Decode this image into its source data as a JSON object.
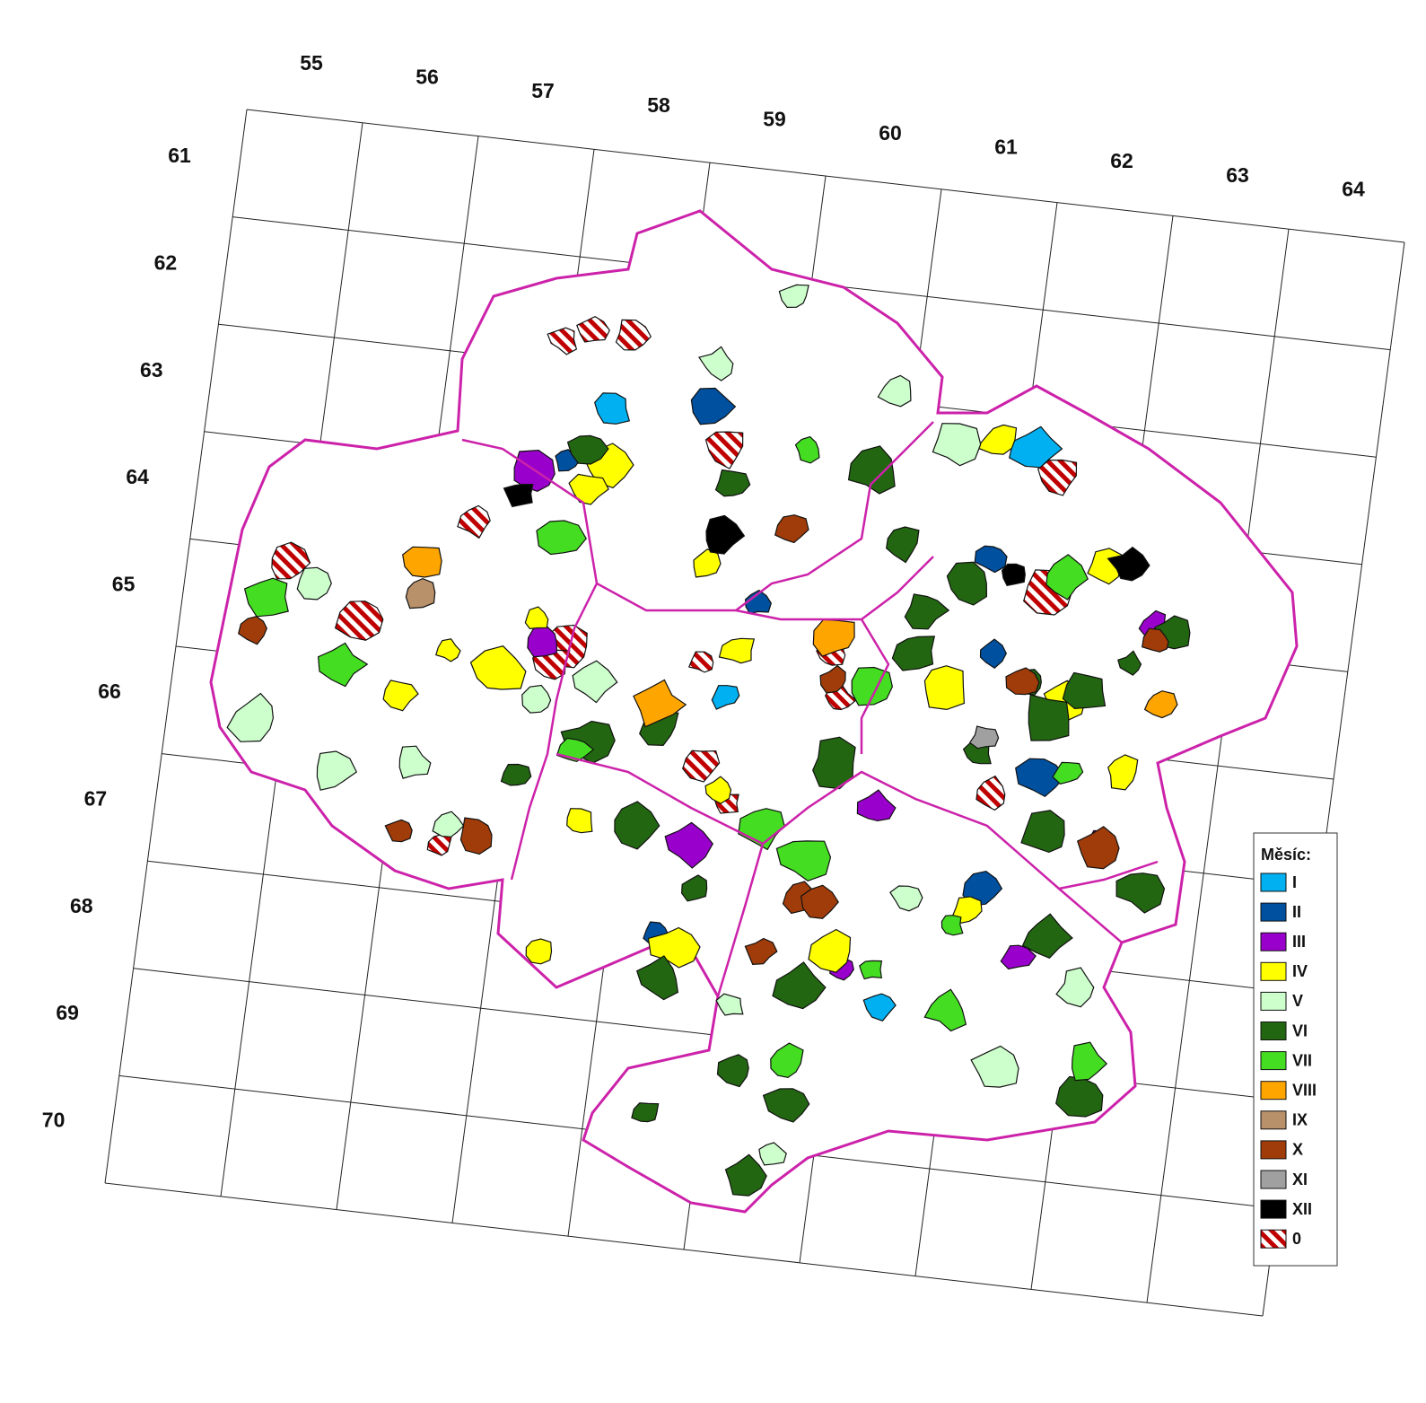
{
  "map": {
    "columns": [
      "55",
      "56",
      "57",
      "58",
      "59",
      "60",
      "61",
      "62",
      "63",
      "64"
    ],
    "rows": [
      "61",
      "62",
      "63",
      "64",
      "65",
      "66",
      "67",
      "68",
      "69",
      "70"
    ],
    "legend": {
      "title": "Měsíc:",
      "items": [
        {
          "label": "I",
          "color": "#00b0f0"
        },
        {
          "label": "II",
          "color": "#0050a0"
        },
        {
          "label": "III",
          "color": "#9900cc"
        },
        {
          "label": "IV",
          "color": "#ffff00"
        },
        {
          "label": "V",
          "color": "#ccffcc"
        },
        {
          "label": "VI",
          "color": "#226611"
        },
        {
          "label": "VII",
          "color": "#44dd22"
        },
        {
          "label": "VIII",
          "color": "#ffa500"
        },
        {
          "label": "IX",
          "color": "#b8906a"
        },
        {
          "label": "X",
          "color": "#a03c0a"
        },
        {
          "label": "XI",
          "color": "#a0a0a0"
        },
        {
          "label": "XII",
          "color": "#000000"
        },
        {
          "label": "0",
          "color": "#c00000",
          "hatched": true
        }
      ]
    }
  }
}
